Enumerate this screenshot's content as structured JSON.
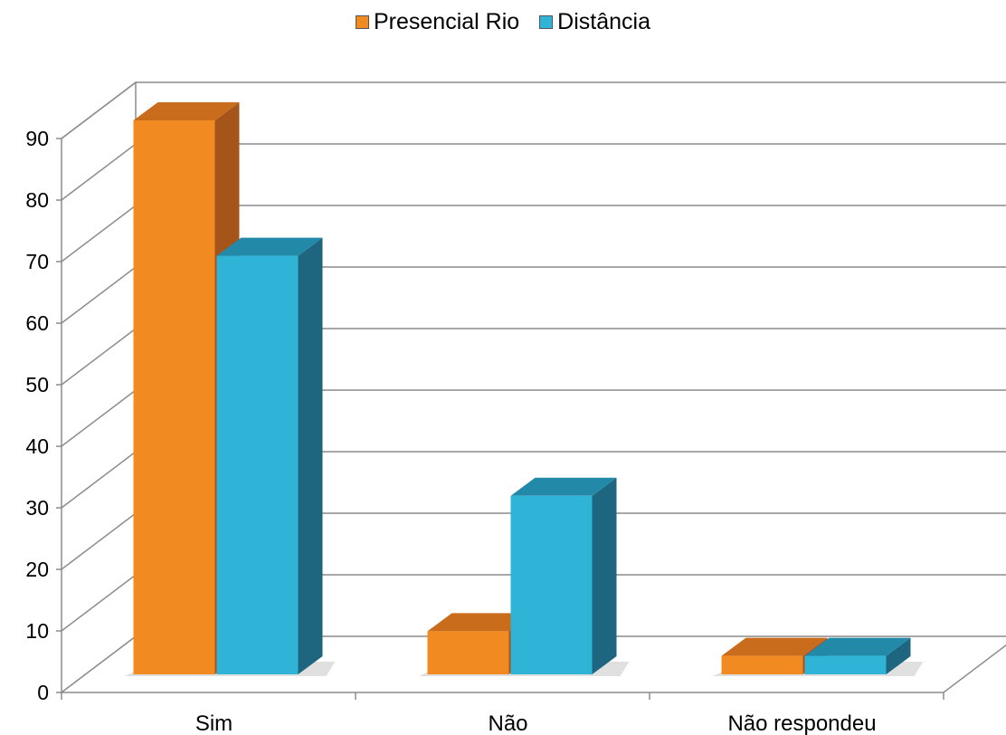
{
  "chart_data": {
    "type": "bar",
    "categories": [
      "Sim",
      "Não",
      "Não respondeu"
    ],
    "series": [
      {
        "name": "Presencial Rio",
        "values": [
          90,
          7,
          3
        ],
        "color": "#f28a22",
        "side_color": "#a5541a",
        "top_color": "#c96d1c"
      },
      {
        "name": "Distância",
        "values": [
          68,
          29,
          3
        ],
        "color": "#2fb4d8",
        "side_color": "#1e6580",
        "top_color": "#2389a8"
      }
    ],
    "ylim": [
      0,
      90
    ],
    "yticks": [
      "0",
      "10",
      "20",
      "30",
      "40",
      "50",
      "60",
      "70",
      "80",
      "90"
    ],
    "legend_position": "top-center",
    "grid": true,
    "title": "",
    "xlabel": "",
    "ylabel": ""
  }
}
